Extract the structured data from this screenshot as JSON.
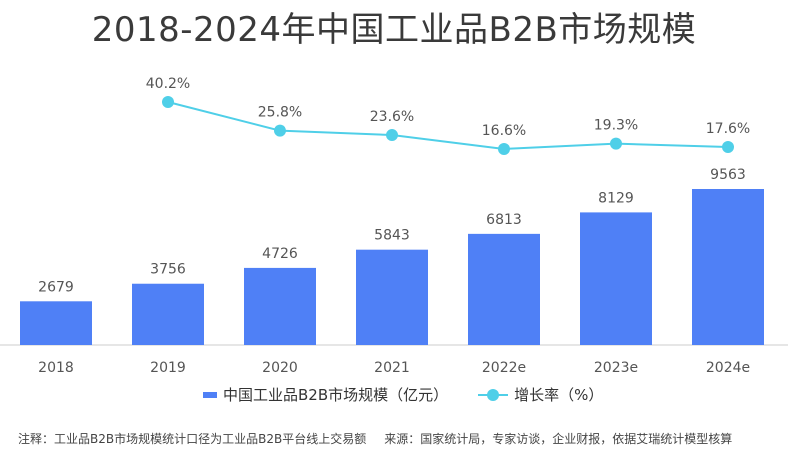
{
  "colors": {
    "bar": "#4f80f6",
    "line": "#4fcfe8",
    "text": "#555555",
    "axis": "#cccccc"
  },
  "chart_data": {
    "type": "bar",
    "title": "2018-2024年中国工业品B2B市场规模",
    "categories": [
      "2018",
      "2019",
      "2020",
      "2021",
      "2022e",
      "2023e",
      "2024e"
    ],
    "series": [
      {
        "name": "中国工业品B2B市场规模（亿元）",
        "type": "bar",
        "values": [
          2679,
          3756,
          4726,
          5843,
          6813,
          8129,
          9563
        ]
      },
      {
        "name": "增长率（%）",
        "type": "line",
        "values": [
          null,
          40.2,
          25.8,
          23.6,
          16.6,
          19.3,
          17.6
        ]
      }
    ],
    "bar_labels": [
      "2679",
      "3756",
      "4726",
      "5843",
      "6813",
      "8129",
      "9563"
    ],
    "line_labels": [
      "",
      "40.2%",
      "25.8%",
      "23.6%",
      "16.6%",
      "19.3%",
      "17.6%"
    ],
    "grid": false,
    "legend": "bottom"
  },
  "legend": {
    "bar_label": "中国工业品B2B市场规模（亿元）",
    "line_label": "增长率（%）"
  },
  "footnote": {
    "note": "注释：工业品B2B市场规模统计口径为工业品B2B平台线上交易额",
    "source": "来源：国家统计局，专家访谈，企业财报，依据艾瑞统计模型核算"
  }
}
